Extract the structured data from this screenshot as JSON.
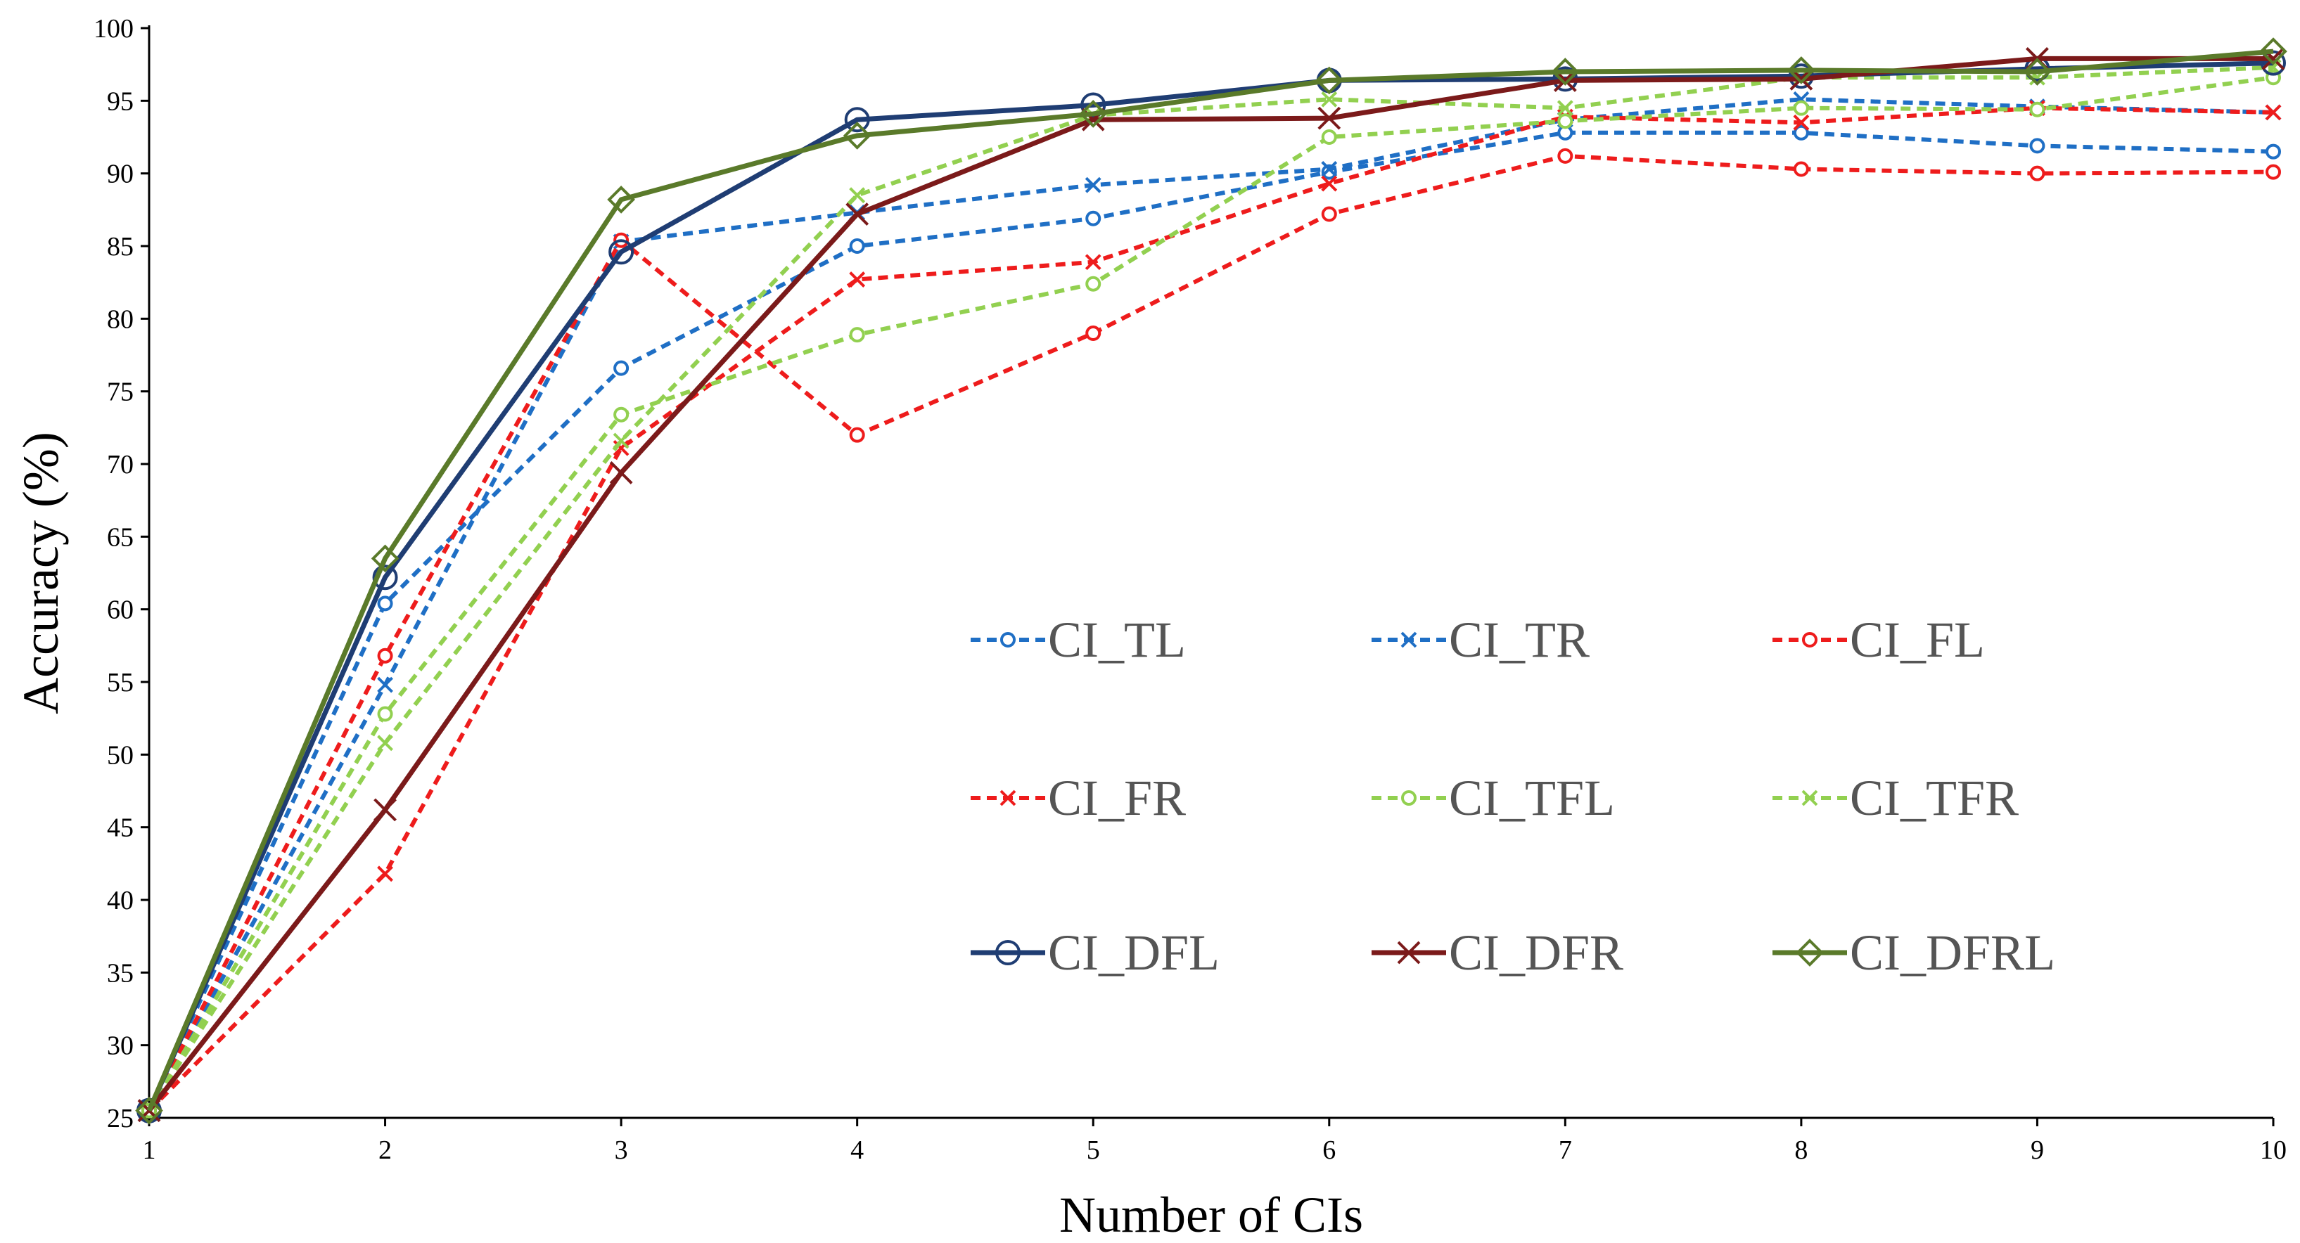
{
  "chart_data": {
    "type": "line",
    "title": "",
    "xlabel": "Number of CIs",
    "ylabel": "Accuracy (%)",
    "x": [
      1,
      2,
      3,
      4,
      5,
      6,
      7,
      8,
      9,
      10
    ],
    "x_ticks": [
      "1",
      "2",
      "3",
      "4",
      "5",
      "6",
      "7",
      "8",
      "9",
      "10"
    ],
    "xlim": [
      1,
      10
    ],
    "ylim": [
      25,
      100
    ],
    "y_ticks": [
      "25",
      "30",
      "35",
      "40",
      "45",
      "50",
      "55",
      "60",
      "65",
      "70",
      "75",
      "80",
      "85",
      "90",
      "95",
      "100"
    ],
    "grid": false,
    "legend_position": "center-right",
    "series": [
      {
        "name": "CI_TL",
        "color": "#1f6fc5",
        "dash": true,
        "marker": "dot",
        "values": [
          25.5,
          60.4,
          76.6,
          85.0,
          86.9,
          90.1,
          92.8,
          92.8,
          91.9,
          91.5
        ]
      },
      {
        "name": "CI_TR",
        "color": "#1f6fc5",
        "dash": true,
        "marker": "x",
        "values": [
          25.5,
          54.8,
          85.3,
          87.3,
          89.2,
          90.3,
          93.7,
          95.1,
          94.6,
          94.2
        ]
      },
      {
        "name": "CI_FL",
        "color": "#ee1c1c",
        "dash": true,
        "marker": "dot",
        "values": [
          25.5,
          56.8,
          85.4,
          72.0,
          79.0,
          87.2,
          91.2,
          90.3,
          90.0,
          90.1
        ]
      },
      {
        "name": "CI_FR",
        "color": "#ee1c1c",
        "dash": true,
        "marker": "x",
        "values": [
          25.5,
          41.8,
          71.1,
          82.7,
          83.9,
          89.3,
          93.9,
          93.5,
          94.5,
          94.2
        ]
      },
      {
        "name": "CI_TFL",
        "color": "#92d050",
        "dash": true,
        "marker": "dot",
        "values": [
          25.5,
          52.8,
          73.4,
          78.9,
          82.4,
          92.5,
          93.6,
          94.5,
          94.4,
          96.6
        ]
      },
      {
        "name": "CI_TFR",
        "color": "#92d050",
        "dash": true,
        "marker": "x",
        "values": [
          25.5,
          50.8,
          71.6,
          88.5,
          94.0,
          95.1,
          94.5,
          96.6,
          96.6,
          97.3
        ]
      },
      {
        "name": "CI_DFL",
        "color": "#1f3d73",
        "dash": false,
        "marker": "circle",
        "values": [
          25.5,
          62.2,
          84.6,
          93.7,
          94.7,
          96.4,
          96.5,
          96.7,
          97.2,
          97.6
        ]
      },
      {
        "name": "CI_DFR",
        "color": "#7b1a1a",
        "dash": false,
        "marker": "x",
        "values": [
          25.5,
          46.2,
          69.4,
          87.2,
          93.7,
          93.8,
          96.4,
          96.5,
          97.9,
          97.9
        ]
      },
      {
        "name": "CI_DFRL",
        "color": "#5a7a2a",
        "dash": false,
        "marker": "diamond",
        "values": [
          25.5,
          63.5,
          88.2,
          92.6,
          94.1,
          96.4,
          97.0,
          97.1,
          97.0,
          98.4
        ]
      }
    ]
  }
}
